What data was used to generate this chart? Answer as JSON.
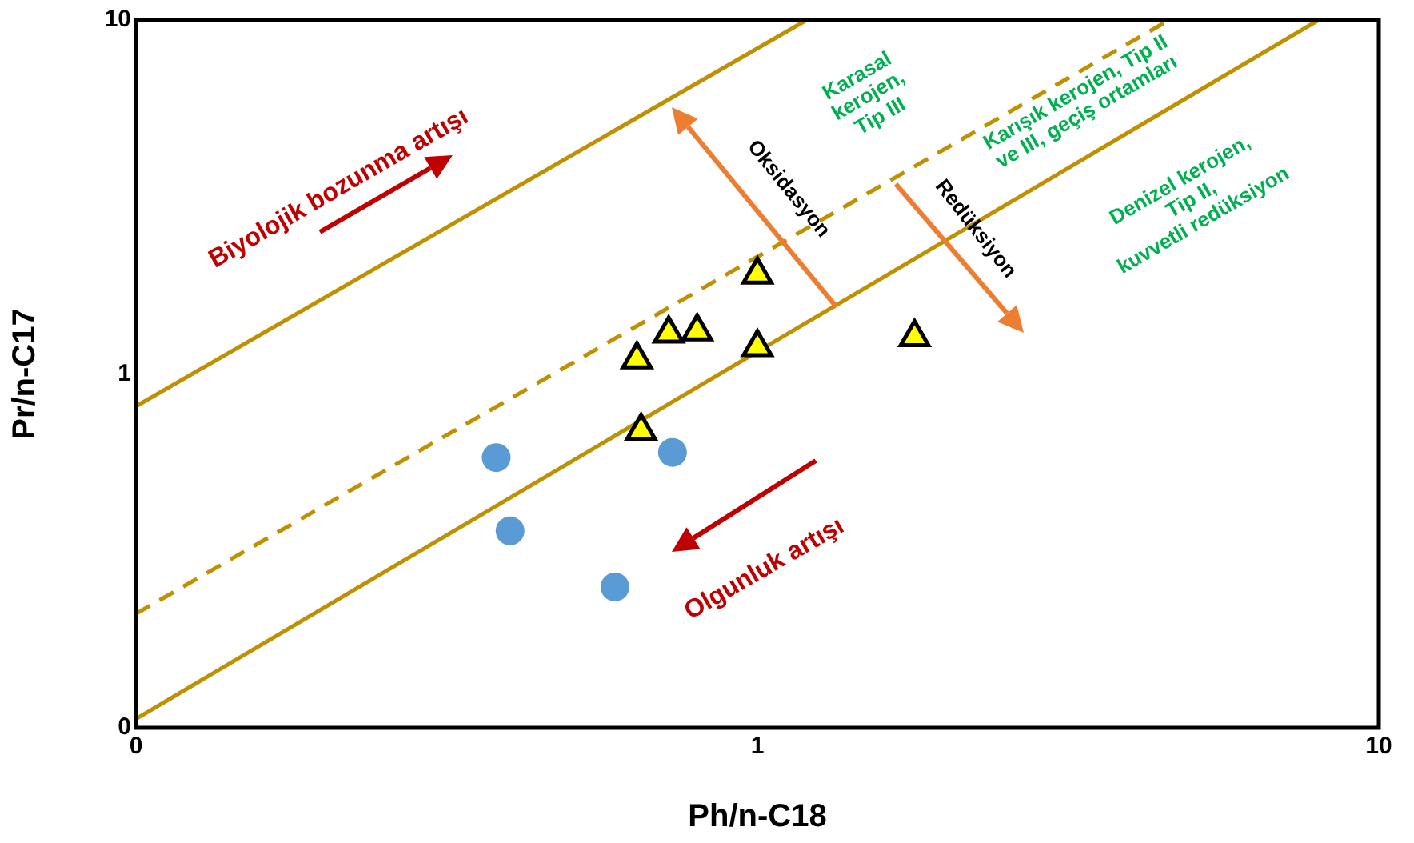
{
  "chart_data": {
    "type": "scatter",
    "xlabel": "Ph/n-C18",
    "ylabel": "Pr/n-C17",
    "log": "xy",
    "grid": false,
    "legend": false,
    "xlim": [
      0.1,
      10
    ],
    "ylim": [
      0.1,
      10
    ],
    "xticks": [
      {
        "value": 0.1,
        "label": "0"
      },
      1,
      10
    ],
    "yticks": [
      {
        "value": 0.1,
        "label": "0"
      },
      1,
      10
    ],
    "series": [
      {
        "type": "scatter",
        "marker": "circle",
        "color": "#5b9bd5",
        "x": [
          0.38,
          0.4,
          0.59,
          0.73
        ],
        "values": [
          0.58,
          0.36,
          0.25,
          0.6
        ]
      },
      {
        "type": "scatter",
        "marker": "triangle",
        "color": "#ffff00",
        "x": [
          0.64,
          0.72,
          0.8,
          1.0,
          1.0,
          1.79,
          0.65
        ],
        "values": [
          1.1,
          1.3,
          1.32,
          1.91,
          1.19,
          1.27,
          0.69
        ]
      },
      {
        "type": "line",
        "marker": "none",
        "line_style": "solid",
        "color": "#bf9000",
        "x": [
          0.1,
          1.2
        ],
        "values": [
          0.81,
          10
        ]
      },
      {
        "type": "line",
        "marker": "none",
        "line_style": "dashed",
        "color": "#bf9000",
        "x": [
          0.1,
          4.6
        ],
        "values": [
          0.21,
          10
        ]
      },
      {
        "type": "line",
        "marker": "none",
        "line_style": "solid",
        "color": "#bf9000",
        "x": [
          0.1,
          8.0
        ],
        "values": [
          0.106,
          10
        ]
      }
    ],
    "annotations": [
      "Biyolojik bozunma artışı",
      "Olgunluk artışı",
      "Oksidasyon",
      "Redüksiyon",
      "Karasal\nkerojen,\nTip III",
      "Karışık kerojen, Tip II\nve III, geçiş ortamları",
      "Denizel kerojen,\nTip II,\nkuvvetli redüksiyon"
    ]
  }
}
